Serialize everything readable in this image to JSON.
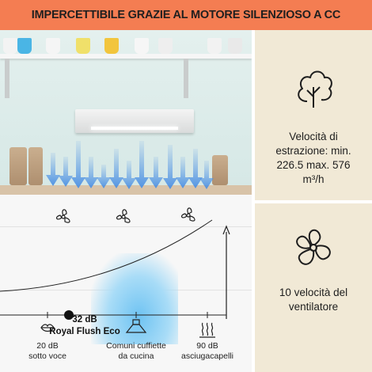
{
  "banner": {
    "title": "IMPERCETTIBILE GRAZIE AL MOTORE SILENZIOSO A CC"
  },
  "scale": {
    "current_db": "32 dB",
    "current_name": "Royal Flush Eco",
    "ticks": [
      {
        "db": "20 dB",
        "desc": "sotto voce",
        "icon": "lips-icon"
      },
      {
        "db": "Comuni cuffiette",
        "desc": "da cucina",
        "icon": "hood-icon"
      },
      {
        "db": "90 dB",
        "desc": "asciugacapelli",
        "icon": "heat-waves-icon"
      }
    ]
  },
  "features": [
    {
      "text_line1": "Velocità di",
      "text_line2": "estrazione: min.",
      "text_line3": "226.5 max. 576",
      "text_line4": "m³/h",
      "icon": "tree-icon"
    },
    {
      "text_line1": "10 velocità del",
      "text_line2": "ventilatore",
      "icon": "fan-icon"
    }
  ],
  "colors": {
    "banner": "#f47d52",
    "panel": "#f1e9d6",
    "arrow": "#5b9be6",
    "marker": "#111111"
  }
}
